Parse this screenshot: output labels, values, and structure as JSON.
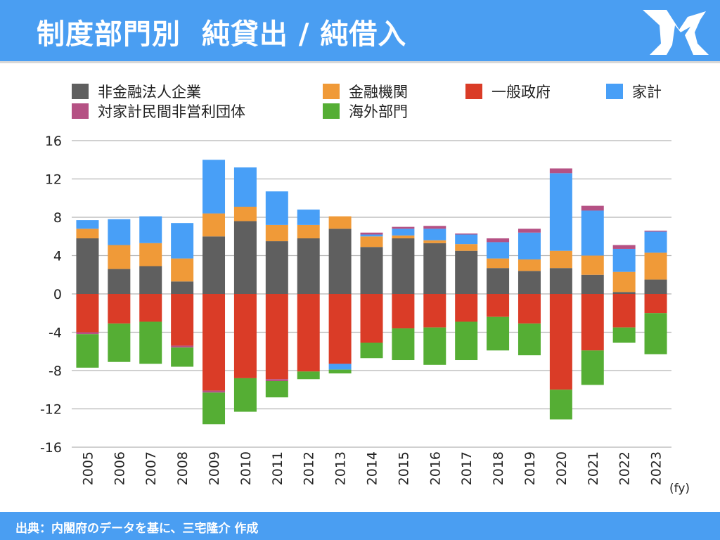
{
  "header": {
    "title": "制度部門別  純貸出 / 純借入",
    "logo_text": "MR"
  },
  "footer": {
    "source": "出典：内閣府のデータを基に、三宅隆介 作成"
  },
  "chart_data": {
    "type": "bar",
    "stacked": true,
    "title": "",
    "xlabel": "(fy)",
    "ylabel": "",
    "ylim": [
      -16,
      16
    ],
    "yticks": [
      16,
      12,
      8,
      4,
      0,
      -4,
      -8,
      -12,
      -16
    ],
    "grid": true,
    "legend_position": "top",
    "categories": [
      "2005",
      "2006",
      "2007",
      "2008",
      "2009",
      "2010",
      "2011",
      "2012",
      "2013",
      "2014",
      "2015",
      "2016",
      "2017",
      "2018",
      "2019",
      "2020",
      "2021",
      "2022",
      "2023"
    ],
    "series": [
      {
        "name": "非金融法人企業",
        "color": "#5f5f5f",
        "values": [
          5.8,
          2.6,
          2.9,
          1.3,
          6.0,
          7.6,
          5.5,
          5.8,
          6.8,
          4.9,
          5.8,
          5.3,
          4.5,
          2.7,
          2.4,
          2.7,
          2.0,
          0.2,
          1.5
        ]
      },
      {
        "name": "金融機関",
        "color": "#f09a38",
        "values": [
          1.0,
          2.5,
          2.4,
          2.4,
          2.4,
          1.5,
          1.7,
          1.4,
          1.3,
          1.1,
          0.3,
          0.3,
          0.7,
          1.0,
          1.2,
          1.8,
          2.0,
          2.1,
          2.8
        ]
      },
      {
        "name": "一般政府",
        "color": "#da3c27",
        "values": [
          -4.0,
          -3.1,
          -2.9,
          -5.4,
          -10.1,
          -8.8,
          -8.9,
          -8.1,
          -7.3,
          -5.1,
          -3.6,
          -3.5,
          -2.9,
          -2.4,
          -3.1,
          -10.0,
          -5.9,
          -3.5,
          -2.0
        ]
      },
      {
        "name": "家計",
        "color": "#489ff7",
        "values": [
          0.9,
          2.7,
          2.8,
          3.7,
          5.6,
          4.1,
          3.5,
          1.6,
          -0.6,
          0.2,
          0.7,
          1.2,
          1.0,
          1.7,
          2.8,
          8.1,
          4.7,
          2.4,
          2.2
        ]
      },
      {
        "name": "対家計民間非営利団体",
        "color": "#b55184",
        "values": [
          -0.2,
          0,
          0,
          -0.2,
          -0.2,
          0,
          -0.2,
          0,
          0,
          0.2,
          0.2,
          0.3,
          0.1,
          0.4,
          0.4,
          0.5,
          0.5,
          0.4,
          0.1
        ]
      },
      {
        "name": "海外部門",
        "color": "#55ae34",
        "values": [
          -3.5,
          -4.0,
          -4.4,
          -2.0,
          -3.3,
          -3.5,
          -1.7,
          -0.8,
          -0.4,
          -1.6,
          -3.3,
          -3.9,
          -4.0,
          -3.5,
          -3.3,
          -3.1,
          -3.6,
          -1.6,
          -4.3
        ]
      }
    ]
  }
}
